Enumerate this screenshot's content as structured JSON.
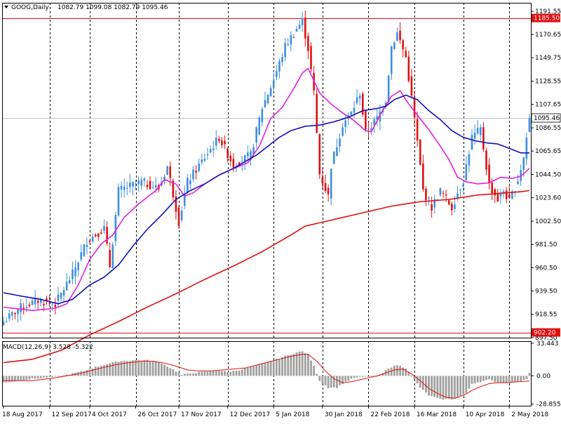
{
  "header": {
    "symbol": "GOOG,Daily",
    "ohlc": "1082.79 1099.08 1082.79 1095.46"
  },
  "colors": {
    "up": "#3d8fe0",
    "down": "#e01010",
    "ma_fast": "#e020e0",
    "ma_mid": "#1010c0",
    "ma_slow": "#e01010",
    "hline": "#e01010",
    "grid": "#000000",
    "macd_hist": "#a0a0a0",
    "macd_signal": "#e01010"
  },
  "chart_data": [
    {
      "type": "candlestick",
      "title": "GOOG,Daily",
      "ylim": [
        897.5,
        1199.2
      ],
      "yticks": [
        "1191.55",
        "1170.65",
        "1149.75",
        "1128.55",
        "1107.65",
        "1086.55",
        "1065.65",
        "1044.50",
        "1023.60",
        "1002.50",
        "981.50",
        "960.50",
        "939.50",
        "918.55",
        "897.50"
      ],
      "xticks": [
        "18 Aug 2017",
        "12 Sep 2017",
        "4 Oct 2017",
        "26 Oct 2017",
        "17 Nov 2017",
        "12 Dec 2017",
        "5 Jan 2018",
        "30 Jan 2018",
        "22 Feb 2018",
        "16 Mar 2018",
        "10 Apr 2018",
        "2 May 2018"
      ],
      "xtick_bar_index": [
        0,
        16,
        30,
        46,
        61,
        78,
        94,
        111,
        127,
        143,
        160,
        176
      ],
      "hlines": [
        {
          "label": "1185.50",
          "value": 1185.5
        },
        {
          "label": "902.20",
          "value": 902.2
        }
      ],
      "last_price_label": "1095.46",
      "last_price": 1095.46,
      "anchors": [
        [
          0,
          912
        ],
        [
          6,
          925
        ],
        [
          12,
          931
        ],
        [
          18,
          928
        ],
        [
          24,
          955
        ],
        [
          29,
          985
        ],
        [
          35,
          996
        ],
        [
          37,
          962
        ],
        [
          40,
          1030
        ],
        [
          48,
          1038
        ],
        [
          54,
          1032
        ],
        [
          57,
          1052
        ],
        [
          61,
          1002
        ],
        [
          64,
          1038
        ],
        [
          70,
          1060
        ],
        [
          75,
          1078
        ],
        [
          80,
          1053
        ],
        [
          86,
          1062
        ],
        [
          90,
          1105
        ],
        [
          94,
          1130
        ],
        [
          98,
          1160
        ],
        [
          102,
          1176
        ],
        [
          104,
          1183
        ],
        [
          106,
          1158
        ],
        [
          108,
          1118
        ],
        [
          110,
          1045
        ],
        [
          113,
          1025
        ],
        [
          114,
          1053
        ],
        [
          118,
          1090
        ],
        [
          121,
          1100
        ],
        [
          124,
          1118
        ],
        [
          126,
          1082
        ],
        [
          130,
          1095
        ],
        [
          133,
          1112
        ],
        [
          135,
          1160
        ],
        [
          137,
          1172
        ],
        [
          140,
          1150
        ],
        [
          143,
          1095
        ],
        [
          146,
          1030
        ],
        [
          149,
          1015
        ],
        [
          152,
          1030
        ],
        [
          156,
          1015
        ],
        [
          158,
          1028
        ],
        [
          160,
          1040
        ],
        [
          163,
          1078
        ],
        [
          166,
          1085
        ],
        [
          169,
          1035
        ],
        [
          172,
          1022
        ],
        [
          174,
          1030
        ],
        [
          176,
          1020
        ],
        [
          179,
          1040
        ],
        [
          181,
          1060
        ],
        [
          183,
          1095.46
        ]
      ],
      "overlays": [
        {
          "name": "fast",
          "anchors": [
            [
              0,
              925
            ],
            [
              10,
              922
            ],
            [
              18,
              924
            ],
            [
              22,
              928
            ],
            [
              26,
              945
            ],
            [
              30,
              968
            ],
            [
              34,
              982
            ],
            [
              38,
              990
            ],
            [
              42,
              1006
            ],
            [
              47,
              1018
            ],
            [
              53,
              1030
            ],
            [
              56,
              1040
            ],
            [
              60,
              1036
            ],
            [
              63,
              1025
            ],
            [
              66,
              1028
            ],
            [
              70,
              1036
            ],
            [
              75,
              1044
            ],
            [
              80,
              1050
            ],
            [
              85,
              1055
            ],
            [
              89,
              1070
            ],
            [
              93,
              1095
            ],
            [
              97,
              1105
            ],
            [
              101,
              1122
            ],
            [
              104,
              1136
            ],
            [
              106,
              1140
            ],
            [
              110,
              1118
            ],
            [
              114,
              1108
            ],
            [
              118,
              1100
            ],
            [
              122,
              1093
            ],
            [
              126,
              1084
            ],
            [
              128,
              1083
            ],
            [
              131,
              1098
            ],
            [
              135,
              1115
            ],
            [
              138,
              1120
            ],
            [
              141,
              1108
            ],
            [
              144,
              1098
            ],
            [
              148,
              1085
            ],
            [
              152,
              1070
            ],
            [
              155,
              1058
            ],
            [
              158,
              1042
            ],
            [
              161,
              1038
            ],
            [
              165,
              1036
            ],
            [
              169,
              1037
            ],
            [
              173,
              1042
            ],
            [
              177,
              1041
            ],
            [
              180,
              1043
            ],
            [
              183,
              1050
            ]
          ]
        },
        {
          "name": "mid",
          "anchors": [
            [
              0,
              938
            ],
            [
              6,
              935
            ],
            [
              13,
              932
            ],
            [
              19,
              928
            ],
            [
              24,
              932
            ],
            [
              30,
              945
            ],
            [
              35,
              952
            ],
            [
              40,
              963
            ],
            [
              45,
              980
            ],
            [
              50,
              995
            ],
            [
              55,
              1008
            ],
            [
              60,
              1022
            ],
            [
              65,
              1030
            ],
            [
              70,
              1036
            ],
            [
              75,
              1044
            ],
            [
              80,
              1050
            ],
            [
              84,
              1056
            ],
            [
              88,
              1062
            ],
            [
              92,
              1070
            ],
            [
              96,
              1078
            ],
            [
              100,
              1084
            ],
            [
              105,
              1088
            ],
            [
              110,
              1089
            ],
            [
              115,
              1092
            ],
            [
              120,
              1096
            ],
            [
              125,
              1102
            ],
            [
              130,
              1104
            ],
            [
              133,
              1106
            ],
            [
              136,
              1112
            ],
            [
              140,
              1116
            ],
            [
              144,
              1112
            ],
            [
              148,
              1102
            ],
            [
              152,
              1094
            ],
            [
              156,
              1084
            ],
            [
              160,
              1078
            ],
            [
              164,
              1075
            ],
            [
              168,
              1073
            ],
            [
              172,
              1072
            ],
            [
              176,
              1068
            ],
            [
              180,
              1064
            ],
            [
              183,
              1064
            ]
          ]
        },
        {
          "name": "slow",
          "anchors": [
            [
              0,
              875
            ],
            [
              10,
              878
            ],
            [
              20,
              886
            ],
            [
              30,
              900
            ],
            [
              40,
              912
            ],
            [
              50,
              925
            ],
            [
              60,
              937
            ],
            [
              70,
              950
            ],
            [
              80,
              962
            ],
            [
              90,
              975
            ],
            [
              100,
              990
            ],
            [
              105,
              998
            ],
            [
              110,
              1001
            ],
            [
              115,
              1004
            ],
            [
              120,
              1007
            ],
            [
              125,
              1010
            ],
            [
              130,
              1013
            ],
            [
              135,
              1016
            ],
            [
              140,
              1018
            ],
            [
              145,
              1020
            ],
            [
              150,
              1021
            ],
            [
              155,
              1022
            ],
            [
              160,
              1024
            ],
            [
              165,
              1026
            ],
            [
              170,
              1027
            ],
            [
              175,
              1028
            ],
            [
              180,
              1029
            ],
            [
              183,
              1030
            ]
          ]
        }
      ]
    },
    {
      "type": "histogram",
      "title": "MACD(12,26,9) 3.528 -5.322",
      "ylim": [
        -30.64,
        35.5
      ],
      "yticks": [
        "33.443",
        "0.00",
        "-28.855"
      ],
      "hist_anchors": [
        [
          0,
          -7
        ],
        [
          10,
          -3
        ],
        [
          14,
          -2
        ],
        [
          18,
          -1
        ],
        [
          22,
          1
        ],
        [
          28,
          5
        ],
        [
          32,
          9
        ],
        [
          36,
          12
        ],
        [
          40,
          15
        ],
        [
          45,
          16
        ],
        [
          50,
          16
        ],
        [
          55,
          13
        ],
        [
          60,
          5
        ],
        [
          62,
          1
        ],
        [
          66,
          3
        ],
        [
          70,
          4
        ],
        [
          74,
          6
        ],
        [
          78,
          4
        ],
        [
          82,
          6
        ],
        [
          86,
          9
        ],
        [
          90,
          12
        ],
        [
          94,
          16
        ],
        [
          98,
          20
        ],
        [
          102,
          24
        ],
        [
          104,
          25
        ],
        [
          106,
          22
        ],
        [
          108,
          10
        ],
        [
          110,
          -5
        ],
        [
          113,
          -12
        ],
        [
          116,
          -12
        ],
        [
          119,
          -6
        ],
        [
          122,
          -2
        ],
        [
          125,
          -1
        ],
        [
          128,
          -1
        ],
        [
          131,
          0
        ],
        [
          134,
          8
        ],
        [
          137,
          11
        ],
        [
          140,
          8
        ],
        [
          142,
          0
        ],
        [
          145,
          -12
        ],
        [
          148,
          -20
        ],
        [
          152,
          -24
        ],
        [
          156,
          -24
        ],
        [
          158,
          -22
        ],
        [
          161,
          -18
        ],
        [
          163,
          -8
        ],
        [
          166,
          -6
        ],
        [
          169,
          -4
        ],
        [
          172,
          -7
        ],
        [
          175,
          -7
        ],
        [
          179,
          -6
        ],
        [
          182,
          -3
        ],
        [
          183,
          3.528
        ]
      ],
      "signal_anchors": [
        [
          0,
          -5
        ],
        [
          10,
          -5
        ],
        [
          18,
          -2
        ],
        [
          26,
          2
        ],
        [
          34,
          8
        ],
        [
          40,
          12
        ],
        [
          48,
          15
        ],
        [
          52,
          15
        ],
        [
          56,
          13
        ],
        [
          60,
          10
        ],
        [
          64,
          6
        ],
        [
          68,
          5
        ],
        [
          72,
          5
        ],
        [
          76,
          6
        ],
        [
          80,
          7
        ],
        [
          84,
          8
        ],
        [
          88,
          11
        ],
        [
          92,
          14
        ],
        [
          96,
          17
        ],
        [
          100,
          20
        ],
        [
          104,
          22
        ],
        [
          106,
          22
        ],
        [
          109,
          15
        ],
        [
          112,
          5
        ],
        [
          115,
          -3
        ],
        [
          118,
          -7
        ],
        [
          121,
          -6
        ],
        [
          124,
          -4
        ],
        [
          127,
          -2
        ],
        [
          130,
          0
        ],
        [
          133,
          3
        ],
        [
          136,
          6
        ],
        [
          139,
          7
        ],
        [
          142,
          2
        ],
        [
          145,
          -5
        ],
        [
          148,
          -13
        ],
        [
          151,
          -18
        ],
        [
          154,
          -22
        ],
        [
          157,
          -23
        ],
        [
          160,
          -20
        ],
        [
          163,
          -15
        ],
        [
          166,
          -11
        ],
        [
          169,
          -8
        ],
        [
          172,
          -7
        ],
        [
          175,
          -7
        ],
        [
          179,
          -6
        ],
        [
          183,
          -5.322
        ]
      ]
    }
  ]
}
